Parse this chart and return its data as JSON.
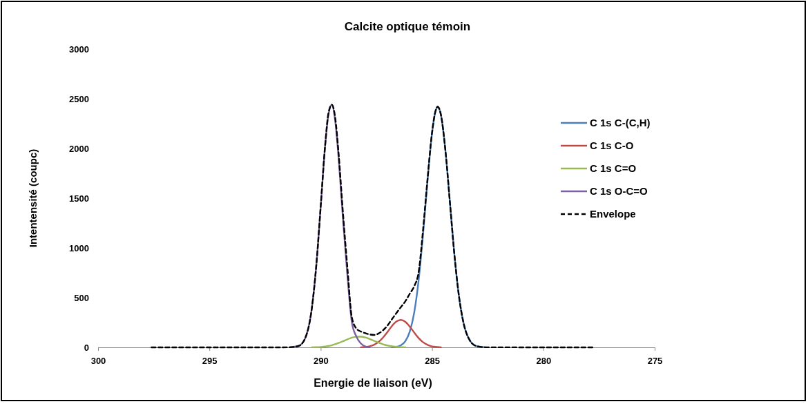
{
  "chart_data": {
    "type": "line",
    "title": "Calcite optique témoin",
    "xlabel": "Energie de liaison (eV)",
    "ylabel": "Intentensité (coupc)",
    "xlim": [
      300,
      275
    ],
    "xticks": [
      300,
      295,
      290,
      285,
      280,
      275
    ],
    "ylim": [
      0,
      3000
    ],
    "yticks": [
      0,
      500,
      1000,
      1500,
      2000,
      2500,
      3000
    ],
    "grid": false,
    "legend": "right",
    "marker": "none",
    "x": [
      297.6,
      292.0,
      291.4,
      291.0,
      290.7,
      290.4,
      290.2,
      290.0,
      289.8,
      289.65,
      289.5,
      289.35,
      289.2,
      289.0,
      288.8,
      288.6,
      288.4,
      288.2,
      288.0,
      287.8,
      287.6,
      287.4,
      287.2,
      287.0,
      286.8,
      286.6,
      286.4,
      286.2,
      286.0,
      285.8,
      285.6,
      285.4,
      285.2,
      285.0,
      284.85,
      284.75,
      284.6,
      284.4,
      284.2,
      284.0,
      283.8,
      283.6,
      283.3,
      283.0,
      282.6,
      277.7
    ],
    "series": [
      {
        "name": "C 1s C-(C,H)",
        "color": "#4a7ebb",
        "line_style": "solid",
        "values": [
          null,
          null,
          null,
          null,
          null,
          null,
          null,
          null,
          null,
          null,
          null,
          null,
          null,
          null,
          null,
          null,
          null,
          null,
          null,
          null,
          null,
          null,
          null,
          null,
          2,
          6,
          21,
          62,
          159,
          351,
          679,
          1145,
          1681,
          2152,
          2367,
          2417,
          2337,
          1982,
          1466,
          944,
          531,
          260,
          69,
          13,
          1,
          null
        ]
      },
      {
        "name": "C 1s C-O",
        "color": "#be4b48",
        "line_style": "solid",
        "values": [
          null,
          null,
          null,
          null,
          null,
          null,
          null,
          null,
          null,
          null,
          null,
          null,
          null,
          null,
          null,
          null,
          null,
          1,
          4,
          11,
          27,
          55,
          99,
          155,
          215,
          260,
          276,
          257,
          209,
          149,
          93,
          51,
          25,
          10,
          5,
          3,
          1,
          null,
          null,
          null,
          null,
          null,
          null,
          null,
          null,
          null
        ]
      },
      {
        "name": "C 1s C=O",
        "color": "#98b954",
        "line_style": "solid",
        "values": [
          null,
          null,
          null,
          null,
          null,
          1,
          2,
          4,
          9,
          14,
          22,
          32,
          44,
          62,
          81,
          98,
          107,
          108,
          100,
          85,
          66,
          47,
          31,
          19,
          10,
          5,
          2,
          1,
          null,
          null,
          null,
          null,
          null,
          null,
          null,
          null,
          null,
          null,
          null,
          null,
          null,
          null,
          null,
          null,
          null,
          null
        ]
      },
      {
        "name": "C 1s O-C=O",
        "color": "#7d60a0",
        "line_style": "solid",
        "values": [
          null,
          null,
          1,
          14,
          91,
          391,
          818,
          1416,
          2028,
          2344,
          2439,
          2279,
          1915,
          1288,
          717,
          250,
          110,
          40,
          10,
          2,
          null,
          null,
          null,
          null,
          null,
          null,
          null,
          null,
          null,
          null,
          null,
          null,
          null,
          null,
          null,
          null,
          null,
          null,
          null,
          null,
          null,
          null,
          null,
          null,
          null,
          null
        ]
      },
      {
        "name": "Envelope",
        "color": "#000000",
        "line_style": "dashed",
        "values": [
          0,
          0,
          1,
          14,
          91,
          392,
          820,
          1420,
          2037,
          2358,
          2440,
          2311,
          1959,
          1350,
          798,
          300,
          190,
          160,
          143,
          130,
          125,
          140,
          172,
          220,
          283,
          345,
          405,
          463,
          540,
          615,
          760,
          1190,
          1700,
          2160,
          2372,
          2420,
          2338,
          1982,
          1466,
          944,
          531,
          260,
          69,
          13,
          1,
          0
        ]
      }
    ]
  }
}
